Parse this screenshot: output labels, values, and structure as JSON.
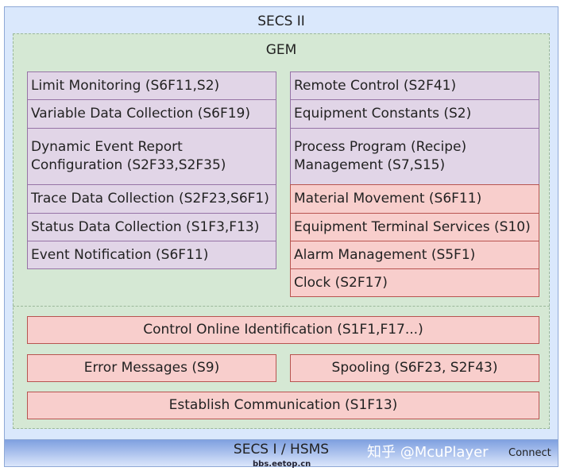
{
  "secs2_title": "SECS II",
  "gem_title": "GEM",
  "secs1_title": "SECS I / HSMS",
  "left": [
    "Limit Monitoring (S6F11,S2)",
    "Variable Data Collection (S6F19)",
    "Dynamic Event Report Configuration (S2F33,S2F35)",
    "Trace Data Collection (S2F23,S6F1)",
    "Status Data Collection (S1F3,F13)",
    "Event Notification (S6F11)"
  ],
  "right": [
    "Remote Control (S2F41)",
    "Equipment Constants (S2)",
    "Process Program (Recipe) Management (S7,S15)",
    "Material Movement (S6F11)",
    "Equipment Terminal Services (S10)",
    "Alarm Management (S5F1)",
    "Clock (S2F17)"
  ],
  "bottom": {
    "online": "Control Online Identification (S1F1,F17...)",
    "errors": "Error Messages (S9)",
    "spooling": "Spooling (S6F23, S2F43)",
    "establish": "Establish Communication (S1F13)"
  },
  "watermarks": {
    "zhihu": "知乎 @McuPlayer",
    "connect": "Connect",
    "eetop": "bbs.eetop.cn"
  },
  "colors": {
    "secs2": "#dae8fc",
    "gem": "#d5e8d4",
    "purple": "#e1d5e7",
    "red": "#f8cecc"
  }
}
